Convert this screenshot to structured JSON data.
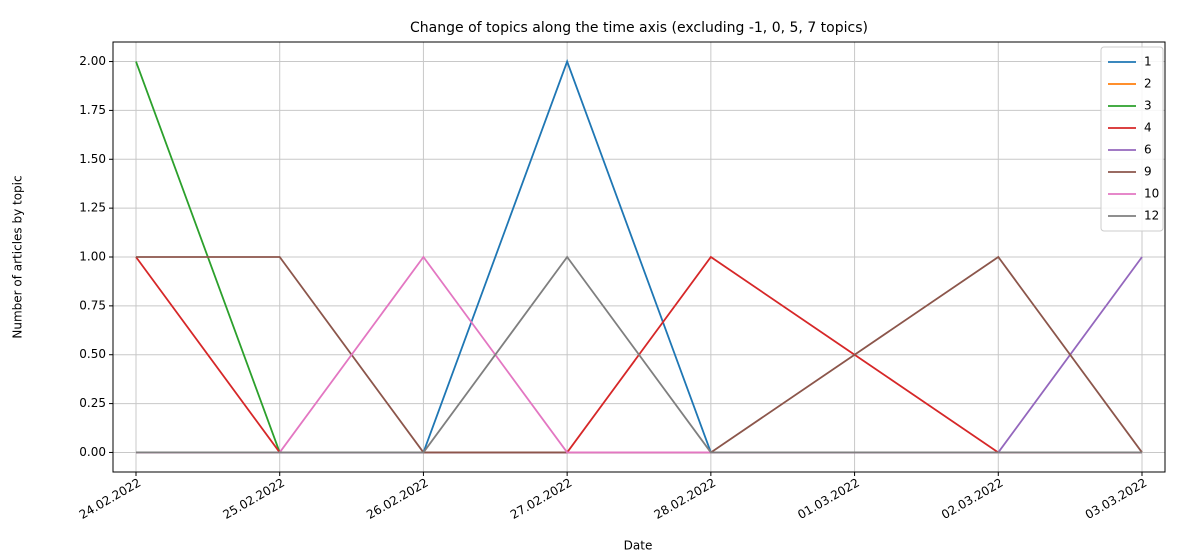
{
  "chart_data": {
    "type": "line",
    "title": "Change of topics along the time axis (excluding -1, 0, 5, 7 topics)",
    "x_label": "Date",
    "y_label": "Number of articles by topic",
    "categories": [
      "24.02.2022",
      "25.02.2022",
      "26.02.2022",
      "27.02.2022",
      "28.02.2022",
      "01.03.2022",
      "02.03.2022",
      "03.03.2022"
    ],
    "series": [
      {
        "name": "1",
        "color": "#1f77b4",
        "values": [
          0,
          0,
          0,
          2,
          0,
          0,
          0,
          0
        ]
      },
      {
        "name": "2",
        "color": "#ff7f0e",
        "values": [
          0,
          0,
          0,
          0,
          0,
          0,
          0,
          0
        ]
      },
      {
        "name": "3",
        "color": "#2ca02c",
        "values": [
          2,
          0,
          0,
          0,
          0,
          0,
          0,
          0
        ]
      },
      {
        "name": "4",
        "color": "#d62728",
        "values": [
          1,
          0,
          0,
          0,
          1,
          0.5,
          0,
          0
        ]
      },
      {
        "name": "6",
        "color": "#9467bd",
        "values": [
          0,
          0,
          0,
          0,
          0,
          0,
          0,
          1
        ]
      },
      {
        "name": "9",
        "color": "#8c564b",
        "values": [
          1,
          1,
          0,
          0,
          0,
          0.5,
          1,
          0
        ]
      },
      {
        "name": "10",
        "color": "#e377c2",
        "values": [
          0,
          0,
          1,
          0,
          0,
          0,
          0,
          0
        ]
      },
      {
        "name": "12",
        "color": "#7f7f7f",
        "values": [
          0,
          0,
          0,
          1,
          0,
          0,
          0,
          0
        ]
      }
    ],
    "ylim": [
      -0.1,
      2.1
    ],
    "yticks": [
      {
        "value": 0,
        "label": "0.00"
      },
      {
        "value": 0.25,
        "label": "0.25"
      },
      {
        "value": 0.5,
        "label": "0.50"
      },
      {
        "value": 0.75,
        "label": "0.75"
      },
      {
        "value": 1,
        "label": "1.00"
      },
      {
        "value": 1.25,
        "label": "1.25"
      },
      {
        "value": 1.5,
        "label": "1.50"
      },
      {
        "value": 1.75,
        "label": "1.75"
      },
      {
        "value": 2,
        "label": "2.00"
      }
    ],
    "grid": true,
    "legend": "upper right"
  }
}
